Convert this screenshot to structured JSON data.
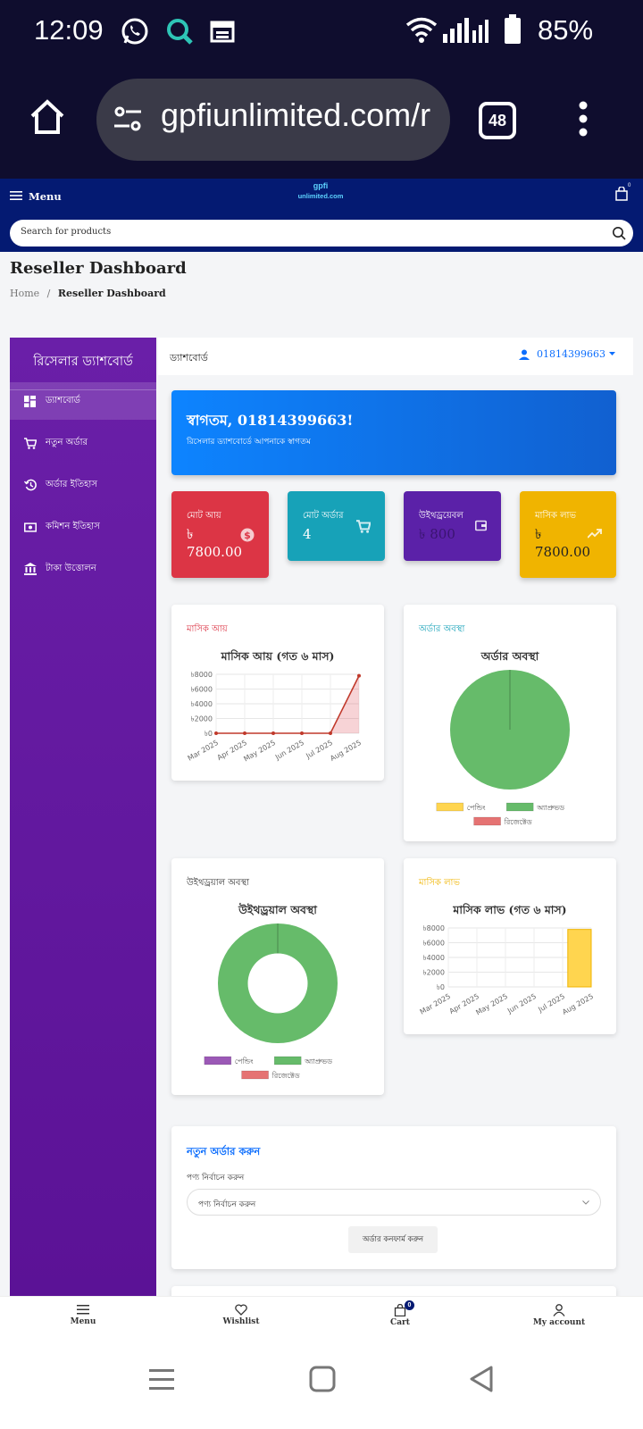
{
  "status_bar": {
    "time": "12:09",
    "battery": "85%"
  },
  "browser": {
    "url": "gpfiunlimited.com/r",
    "tab_count": "48"
  },
  "site_header": {
    "menu_label": "Menu",
    "logo_top": "gpfi",
    "logo_bottom": "unlimited.com",
    "cart_badge": "0"
  },
  "search": {
    "placeholder": "Search for products"
  },
  "page": {
    "title": "Reseller Dashboard",
    "crumb_home": "Home",
    "crumb_sep": "/",
    "crumb_current": "Reseller Dashboard"
  },
  "sidebar": {
    "title": "রিসেলার ড্যাশবোর্ড",
    "items": [
      {
        "label": "ড্যাশবোর্ড",
        "icon": "dashboard-icon"
      },
      {
        "label": "নতুন অর্ডার",
        "icon": "cart-icon"
      },
      {
        "label": "অর্ডার ইতিহাস",
        "icon": "history-icon"
      },
      {
        "label": "কমিশন ইতিহাস",
        "icon": "money-icon"
      },
      {
        "label": "টাকা উত্তোলন",
        "icon": "bank-icon"
      }
    ]
  },
  "topbar": {
    "title": "ড্যাশবোর্ড",
    "user": "01814399663"
  },
  "welcome": {
    "title": "স্বাগতম, 01814399663!",
    "subtitle": "রিসেলার ড্যাশবোর্ডে আপনাকে স্বাগতম"
  },
  "stats": [
    {
      "label": "মোট আয়",
      "value": "৳ 7800.00",
      "color": "#dc3545",
      "icon": "dollar-icon"
    },
    {
      "label": "মোট অর্ডার",
      "value": "4",
      "color": "#17a2b8",
      "icon": "cart-icon"
    },
    {
      "label": "উইথড্রয়েবল",
      "value": "৳ 800",
      "color": "#6f42c1",
      "icon": "wallet-icon"
    },
    {
      "label": "মাসিক লাভ",
      "value": "৳ 7800.00",
      "color": "#ffc107",
      "icon": "trending-up-icon"
    }
  ],
  "cards": {
    "income": {
      "header": "মাসিক আয়",
      "header_color": "#dc3545"
    },
    "order_status": {
      "header": "অর্ডার অবস্থা",
      "header_color": "#17a2b8"
    },
    "withdraw_status": {
      "header": "উইথড্রয়াল অবস্থা",
      "header_color": "#333333"
    },
    "profit": {
      "header": "মাসিক লাভ",
      "header_color": "#ffc107"
    }
  },
  "chart_data": [
    {
      "type": "line",
      "title": "মাসিক আয় (গত ৬ মাস)",
      "categories": [
        "Mar 2025",
        "Apr 2025",
        "May 2025",
        "Jun 2025",
        "Jul 2025",
        "Aug 2025"
      ],
      "values": [
        0,
        0,
        0,
        0,
        0,
        7800
      ],
      "ylim": [
        0,
        8000
      ],
      "yticks": [
        "৳0",
        "৳2000",
        "৳4000",
        "৳6000",
        "৳8000"
      ],
      "color": "#c0392b",
      "grid": true
    },
    {
      "type": "pie",
      "title": "অর্ডার অবস্থা",
      "labels": [
        "পেন্ডিং",
        "অ্যাপ্রুভড",
        "রিজেক্টেড"
      ],
      "values": [
        0,
        4,
        0
      ],
      "colors": [
        "#ffd54f",
        "#66bb6a",
        "#e57373"
      ],
      "legend": "bottom"
    },
    {
      "type": "pie",
      "title": "উইথড্রয়াল অবস্থা",
      "labels": [
        "পেন্ডিং",
        "অ্যাপ্রুভড",
        "রিজেক্টেড"
      ],
      "values": [
        0,
        1,
        0
      ],
      "colors": [
        "#9b59b6",
        "#66bb6a",
        "#e57373"
      ],
      "legend": "bottom"
    },
    {
      "type": "bar",
      "title": "মাসিক লাভ (গত ৬ মাস)",
      "categories": [
        "Mar 2025",
        "Apr 2025",
        "May 2025",
        "Jun 2025",
        "Jul 2025",
        "Aug 2025"
      ],
      "values": [
        0,
        0,
        0,
        0,
        0,
        7800
      ],
      "ylim": [
        0,
        8000
      ],
      "yticks": [
        "৳0",
        "৳2000",
        "৳4000",
        "৳6000",
        "৳8000"
      ],
      "color": "#ffd54f",
      "grid": true
    }
  ],
  "new_order": {
    "title": "নতুন অর্ডার করুন",
    "field_label": "পণ্য নির্বাচন করুন",
    "select_value": "পণ্য নির্বাচন করুন",
    "button": "অর্ডার কনফার্ম করুন"
  },
  "bottom_nav": [
    {
      "label": "Menu",
      "icon": "menu-icon"
    },
    {
      "label": "Wishlist",
      "icon": "heart-icon"
    },
    {
      "label": "Cart",
      "icon": "bag-icon",
      "badge": "0"
    },
    {
      "label": "My account",
      "icon": "user-icon"
    }
  ]
}
